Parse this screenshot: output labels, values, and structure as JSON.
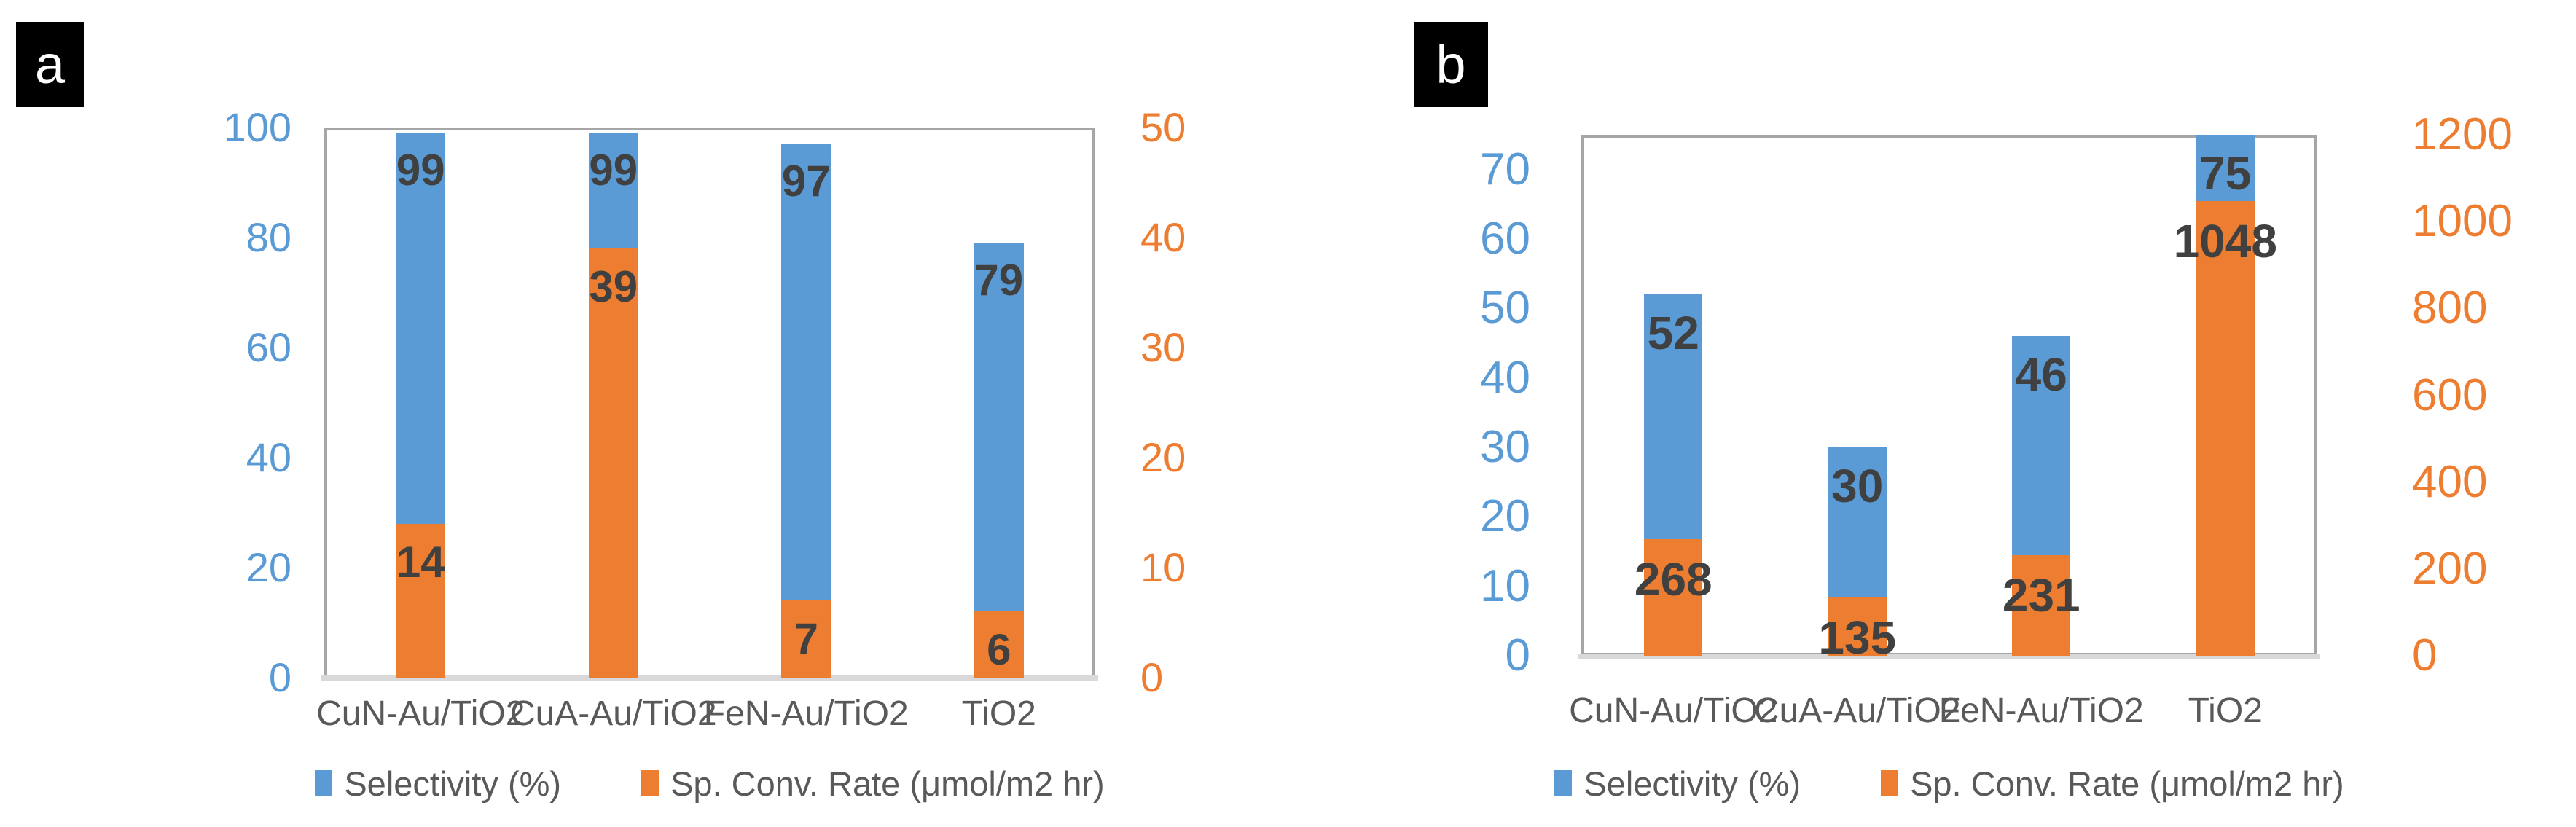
{
  "figure": {
    "panels": [
      {
        "label": "a"
      },
      {
        "label": "b"
      }
    ]
  },
  "colors": {
    "selectivity_blue": "#5B9BD5",
    "rate_orange": "#ED7D31",
    "data_label": "#404040",
    "category_text": "#595959",
    "plot_border": "#A6A6A6",
    "axis_line": "#D9D9D9",
    "panel_badge_bg": "#000000",
    "panel_badge_text": "#ffffff"
  },
  "chart_data": [
    {
      "type": "bar",
      "panel": "a",
      "title": "",
      "categories": [
        "CuN-Au/TiO2",
        "CuA-Au/TiO2",
        "FeN-Au/TiO2",
        "TiO2"
      ],
      "series": [
        {
          "name": "Selectivity (%)",
          "axis": "left",
          "color": "#5B9BD5",
          "values": [
            99,
            99,
            97,
            79
          ]
        },
        {
          "name": "Sp. Conv. Rate (μmol/m2 hr)",
          "axis": "right",
          "color": "#ED7D31",
          "values": [
            14,
            39,
            7,
            6
          ]
        }
      ],
      "left_axis": {
        "min": 0,
        "max": 100,
        "ticks": [
          0,
          20,
          40,
          60,
          80,
          100
        ],
        "color": "#5B9BD5"
      },
      "right_axis": {
        "min": 0,
        "max": 50,
        "ticks": [
          0,
          10,
          20,
          30,
          40,
          50
        ],
        "color": "#ED7D31"
      },
      "grid": false,
      "data_labels": true,
      "legend_position": "bottom",
      "bar_style": "overlapped-dual-axis"
    },
    {
      "type": "bar",
      "panel": "b",
      "title": "",
      "categories": [
        "CuN-Au/TiO2",
        "CuA-Au/TiO2",
        "FeN-Au/TiO2",
        "TiO2"
      ],
      "series": [
        {
          "name": "Selectivity (%)",
          "axis": "left",
          "color": "#5B9BD5",
          "values": [
            52,
            30,
            46,
            75
          ]
        },
        {
          "name": "Sp. Conv. Rate (μmol/m2 hr)",
          "axis": "right",
          "color": "#ED7D31",
          "values": [
            268,
            135,
            231,
            1048
          ]
        }
      ],
      "left_axis": {
        "min": 0,
        "max": 75,
        "ticks": [
          0,
          10,
          20,
          30,
          40,
          50,
          60,
          70
        ],
        "color": "#5B9BD5"
      },
      "right_axis": {
        "min": 0,
        "max": 1200,
        "ticks": [
          0,
          200,
          400,
          600,
          800,
          1000,
          1200
        ],
        "color": "#ED7D31"
      },
      "grid": false,
      "data_labels": true,
      "legend_position": "bottom",
      "bar_style": "overlapped-dual-axis"
    }
  ]
}
